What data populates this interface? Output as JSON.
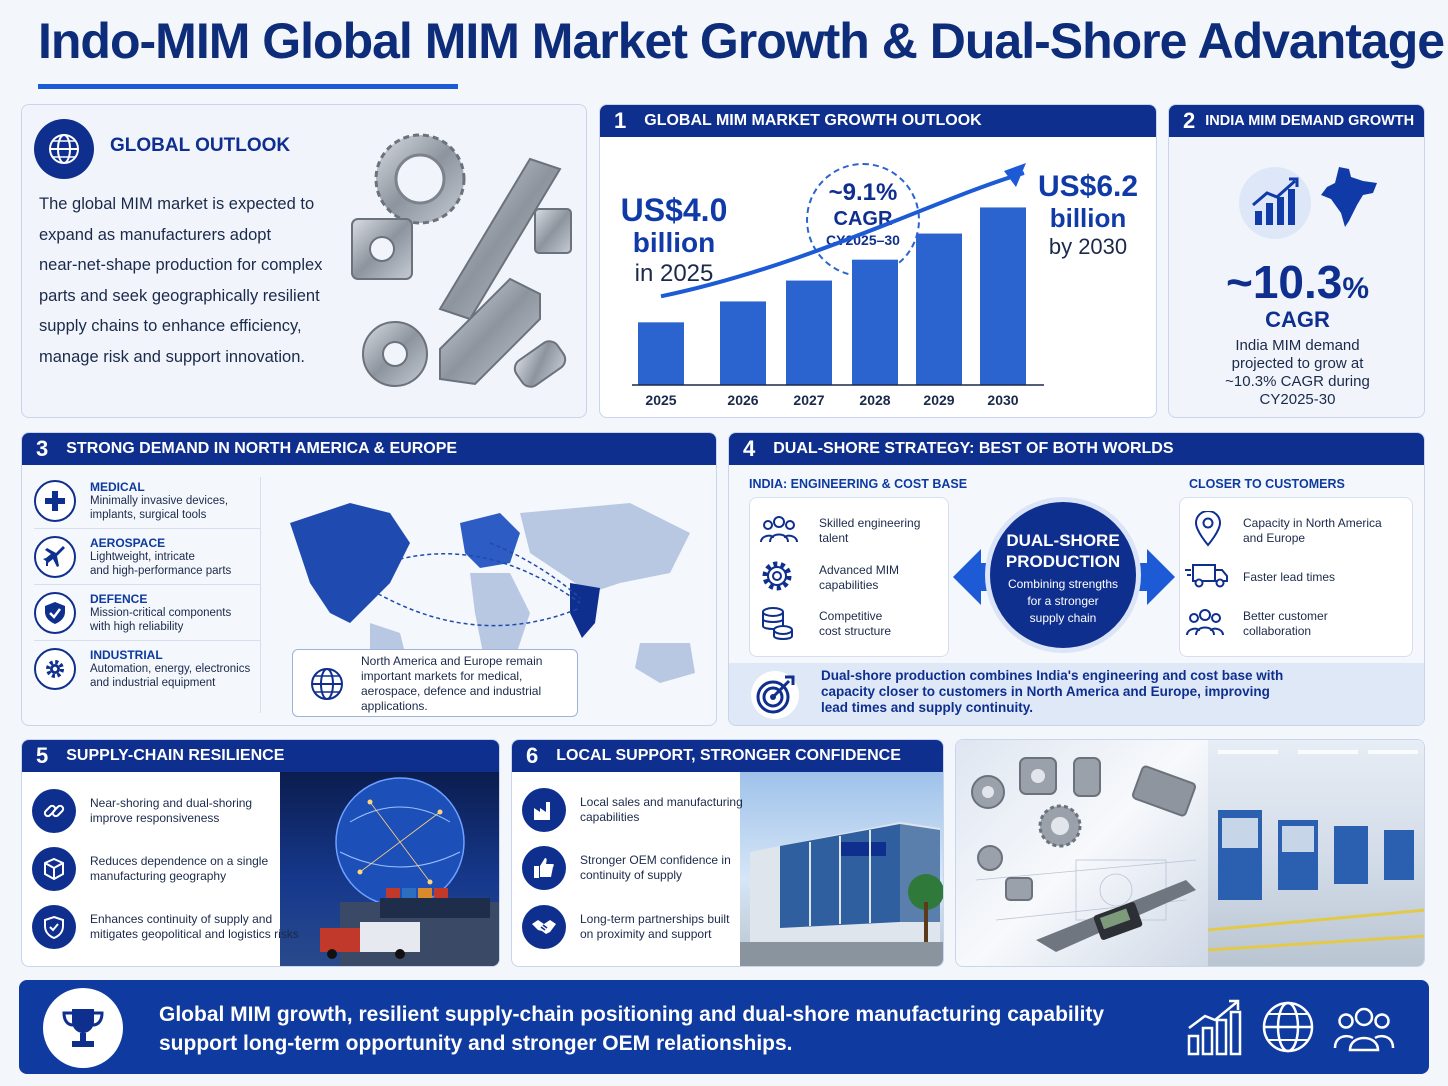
{
  "page": {
    "title": "Indo-MIM Global MIM Market Growth & Dual-Shore Advantage"
  },
  "outlook": {
    "heading": "GLOBAL OUTLOOK",
    "lines": [
      "The global MIM market is expected to",
      "expand as manufacturers adopt",
      "near-net-shape production for complex",
      "parts and seek geographically resilient",
      "supply chains to enhance efficiency,",
      "manage risk and support innovation."
    ]
  },
  "growth": {
    "num": "1",
    "title": "GLOBAL MIM MARKET GROWTH OUTLOOK",
    "start_value": "US$4.0",
    "start_unit": "billion",
    "start_year": "in 2025",
    "cagr_value": "~9.1%",
    "cagr_label": "CAGR",
    "cagr_period": "CY2025–30",
    "end_value": "US$6.2",
    "end_unit": "billion",
    "end_year": "by 2030"
  },
  "chart_data": {
    "type": "bar",
    "categories": [
      "2025",
      "2026",
      "2027",
      "2028",
      "2029",
      "2030"
    ],
    "values": [
      4.0,
      4.4,
      4.8,
      5.2,
      5.7,
      6.2
    ],
    "ylim": [
      2.8,
      6.4
    ],
    "grid": false,
    "colors": {
      "bar": "#2b63cf",
      "trend": "#1d5ad6"
    }
  },
  "india": {
    "num": "2",
    "title": "INDIA MIM DEMAND GROWTH",
    "value": "~10.3",
    "pct": "%",
    "cagr": "CAGR",
    "desc": [
      "India MIM demand",
      "projected to grow at",
      "~10.3% CAGR during",
      "CY2025-30"
    ]
  },
  "demand": {
    "num": "3",
    "title": "STRONG DEMAND IN NORTH AMERICA & EUROPE",
    "sectors": [
      {
        "name": "MEDICAL",
        "l1": "Minimally invasive devices,",
        "l2": "implants, surgical tools",
        "icon": "medical-cross-icon"
      },
      {
        "name": "AEROSPACE",
        "l1": "Lightweight, intricate",
        "l2": "and high-performance parts",
        "icon": "airplane-icon"
      },
      {
        "name": "DEFENCE",
        "l1": "Mission-critical components",
        "l2": "with high reliability",
        "icon": "shield-icon"
      },
      {
        "name": "INDUSTRIAL",
        "l1": "Automation, energy, electronics",
        "l2": "and industrial equipment",
        "icon": "gear-icon"
      }
    ],
    "note": [
      "North America and Europe remain",
      "important markets for medical,",
      "aerospace, defence and industrial",
      "applications."
    ]
  },
  "dual": {
    "num": "4",
    "title": "DUAL-SHORE STRATEGY: BEST OF BOTH WORLDS",
    "left_head": "INDIA: ENGINEERING & COST BASE",
    "left_items": [
      {
        "l1": "Skilled engineering",
        "l2": "talent"
      },
      {
        "l1": "Advanced MIM",
        "l2": "capabilities"
      },
      {
        "l1": "Competitive",
        "l2": "cost structure"
      }
    ],
    "center_title_1": "DUAL-SHORE",
    "center_title_2": "PRODUCTION",
    "center_sub": [
      "Combining strengths",
      "for a stronger",
      "supply chain"
    ],
    "right_head": "CLOSER TO CUSTOMERS",
    "right_items": [
      {
        "l1": "Capacity in North America",
        "l2": "and Europe"
      },
      {
        "l1": "Faster lead times",
        "l2": ""
      },
      {
        "l1": "Better customer",
        "l2": "collaboration"
      }
    ],
    "footer": [
      "Dual-shore production combines India's engineering and cost base with",
      "capacity closer to customers in North America and Europe, improving",
      "lead times and supply continuity."
    ]
  },
  "resilience": {
    "num": "5",
    "title": "SUPPLY-CHAIN RESILIENCE",
    "items": [
      {
        "l1": "Near-shoring and dual-shoring",
        "l2": "improve responsiveness"
      },
      {
        "l1": "Reduces dependence on a single",
        "l2": "manufacturing geography"
      },
      {
        "l1": "Enhances continuity of supply and",
        "l2": "mitigates geopolitical and logistics risks"
      }
    ]
  },
  "support": {
    "num": "6",
    "title": "LOCAL SUPPORT, STRONGER CONFIDENCE",
    "items": [
      {
        "l1": "Local sales and manufacturing",
        "l2": "capabilities"
      },
      {
        "l1": "Stronger OEM confidence in",
        "l2": "continuity of supply"
      },
      {
        "l1": "Long-term partnerships built",
        "l2": "on proximity and support"
      }
    ]
  },
  "banner": {
    "line1": "Global MIM growth, resilient supply-chain positioning and dual-shore manufacturing capability",
    "line2": "support long-term opportunity and stronger OEM relationships."
  }
}
